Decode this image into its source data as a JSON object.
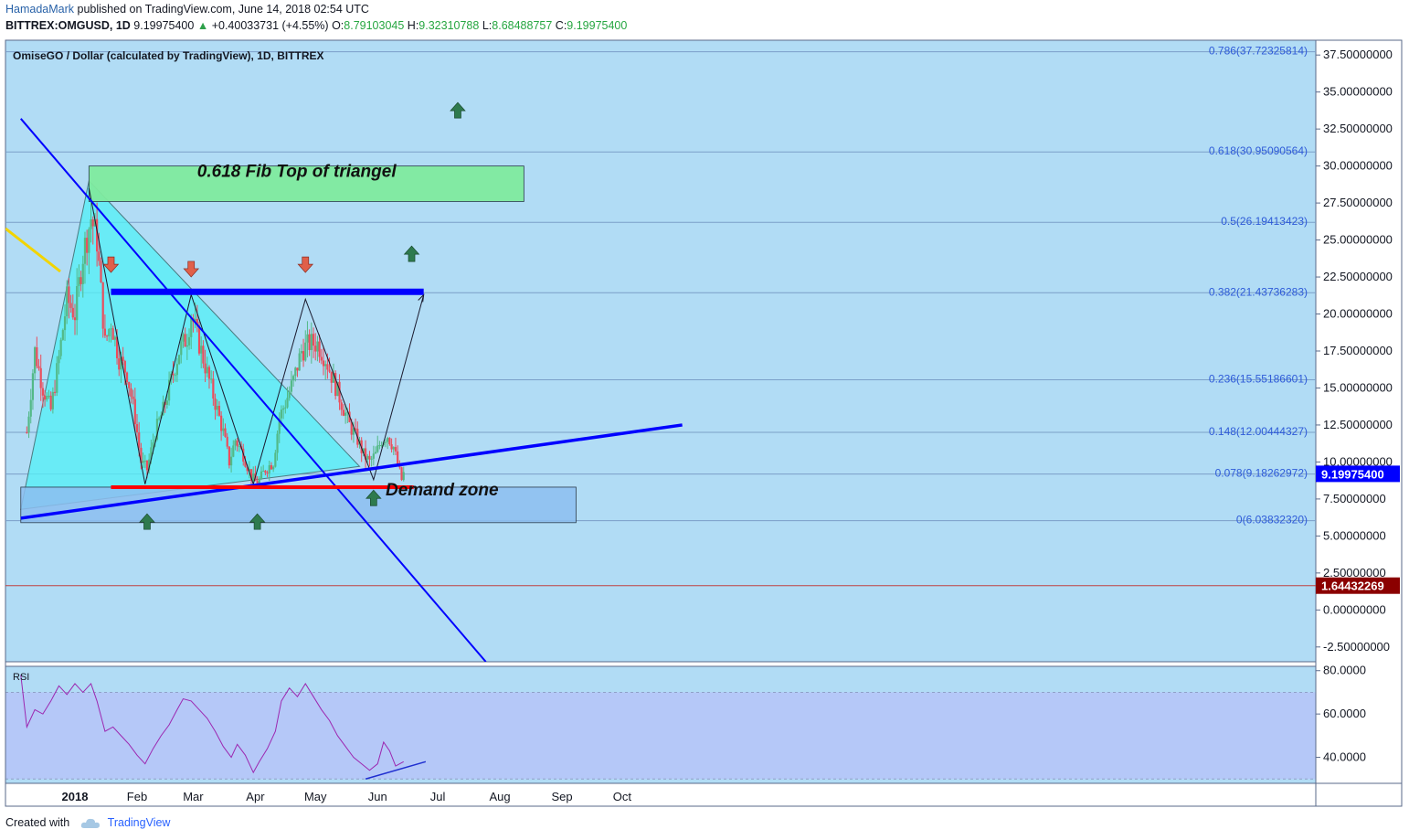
{
  "header": {
    "author": "HamadaMark",
    "published": "published on TradingView.com, June 14, 2018 02:54 UTC",
    "symbol": "BITTREX:OMGUSD, 1D",
    "last": "9.19975400",
    "change": "+0.40033731 (+4.55%)",
    "o_label": "O:",
    "o": "8.79103045",
    "h_label": "H:",
    "h": "9.32310788",
    "l_label": "L:",
    "l": "8.68488757",
    "c_label": "C:",
    "c": "9.19975400"
  },
  "chart_title": "OmiseGO / Dollar (calculated by TradingView), 1D, BITTREX",
  "footer": {
    "created": "Created with",
    "brand": "TradingView"
  },
  "colors": {
    "background": "#b1dcf5",
    "up_candle": "#53b987",
    "down_candle": "#eb4d5c",
    "trendline": "#0000ff",
    "resistance": "#0000ff",
    "support": "#ff0000",
    "triangle_fill": "#52f0f5",
    "fib_zone": "#80ea9e",
    "demand_zone": "#8dbef0",
    "rsi": "#9c27b0",
    "price_marker": "#0000ff",
    "low_marker": "#8b0000"
  },
  "chart_data": [
    {
      "type": "candlestick",
      "symbol": "OMGUSD",
      "timeframe": "1D",
      "x_labels": [
        "2018",
        "Feb",
        "Mar",
        "Apr",
        "May",
        "Jun",
        "Jul",
        "Aug",
        "Sep",
        "Oct"
      ],
      "y_ticks": [
        "37.50000000",
        "35.00000000",
        "32.50000000",
        "30.00000000",
        "27.50000000",
        "25.00000000",
        "22.50000000",
        "20.00000000",
        "17.50000000",
        "15.00000000",
        "12.50000000",
        "10.00000000",
        "7.50000000",
        "5.00000000",
        "2.50000000",
        "0.00000000",
        "-2.50000000"
      ],
      "ylim": [
        -3.5,
        38.5
      ],
      "x_anchors": [
        {
          "date": "2018-01-01",
          "label": "2018"
        },
        {
          "date": "2018-02-01",
          "label": "Feb"
        },
        {
          "date": "2018-03-01",
          "label": "Mar"
        },
        {
          "date": "2018-04-01",
          "label": "Apr"
        },
        {
          "date": "2018-05-01",
          "label": "May"
        },
        {
          "date": "2018-06-01",
          "label": "Jun"
        },
        {
          "date": "2018-07-01",
          "label": "Jul"
        },
        {
          "date": "2018-08-01",
          "label": "Aug"
        },
        {
          "date": "2018-09-01",
          "label": "Sep"
        },
        {
          "date": "2018-10-01",
          "label": "Oct"
        }
      ],
      "close_path": [
        {
          "date": "2017-12-08",
          "close": 12.0
        },
        {
          "date": "2017-12-12",
          "close": 17.5
        },
        {
          "date": "2017-12-16",
          "close": 15.0
        },
        {
          "date": "2017-12-20",
          "close": 13.5
        },
        {
          "date": "2017-12-24",
          "close": 17.0
        },
        {
          "date": "2017-12-28",
          "close": 21.0
        },
        {
          "date": "2018-01-01",
          "close": 20.0
        },
        {
          "date": "2018-01-05",
          "close": 24.0
        },
        {
          "date": "2018-01-09",
          "close": 26.5
        },
        {
          "date": "2018-01-12",
          "close": 25.0
        },
        {
          "date": "2018-01-16",
          "close": 18.0
        },
        {
          "date": "2018-01-19",
          "close": 19.5
        },
        {
          "date": "2018-01-23",
          "close": 17.0
        },
        {
          "date": "2018-01-27",
          "close": 16.0
        },
        {
          "date": "2018-01-31",
          "close": 13.0
        },
        {
          "date": "2018-02-03",
          "close": 10.0
        },
        {
          "date": "2018-02-06",
          "close": 9.5
        },
        {
          "date": "2018-02-10",
          "close": 12.0
        },
        {
          "date": "2018-02-14",
          "close": 13.5
        },
        {
          "date": "2018-02-18",
          "close": 15.5
        },
        {
          "date": "2018-02-22",
          "close": 17.5
        },
        {
          "date": "2018-02-26",
          "close": 18.5
        },
        {
          "date": "2018-02-28",
          "close": 20.0
        },
        {
          "date": "2018-03-04",
          "close": 18.0
        },
        {
          "date": "2018-03-08",
          "close": 16.0
        },
        {
          "date": "2018-03-12",
          "close": 14.0
        },
        {
          "date": "2018-03-16",
          "close": 12.0
        },
        {
          "date": "2018-03-19",
          "close": 10.0
        },
        {
          "date": "2018-03-22",
          "close": 11.5
        },
        {
          "date": "2018-03-26",
          "close": 10.5
        },
        {
          "date": "2018-03-30",
          "close": 9.0
        },
        {
          "date": "2018-04-02",
          "close": 8.5
        },
        {
          "date": "2018-04-06",
          "close": 9.5
        },
        {
          "date": "2018-04-10",
          "close": 10.0
        },
        {
          "date": "2018-04-13",
          "close": 13.0
        },
        {
          "date": "2018-04-16",
          "close": 14.0
        },
        {
          "date": "2018-04-20",
          "close": 15.5
        },
        {
          "date": "2018-04-24",
          "close": 17.5
        },
        {
          "date": "2018-04-28",
          "close": 18.0
        },
        {
          "date": "2018-05-02",
          "close": 18.0
        },
        {
          "date": "2018-05-06",
          "close": 17.0
        },
        {
          "date": "2018-05-10",
          "close": 15.5
        },
        {
          "date": "2018-05-14",
          "close": 14.0
        },
        {
          "date": "2018-05-18",
          "close": 12.5
        },
        {
          "date": "2018-05-22",
          "close": 11.5
        },
        {
          "date": "2018-05-25",
          "close": 10.5
        },
        {
          "date": "2018-05-28",
          "close": 10.0
        },
        {
          "date": "2018-05-31",
          "close": 10.5
        },
        {
          "date": "2018-06-03",
          "close": 11.5
        },
        {
          "date": "2018-06-06",
          "close": 11.8
        },
        {
          "date": "2018-06-09",
          "close": 11.0
        },
        {
          "date": "2018-06-11",
          "close": 9.8
        },
        {
          "date": "2018-06-13",
          "close": 8.8
        },
        {
          "date": "2018-06-14",
          "close": 9.2
        }
      ],
      "fib_levels": [
        {
          "label": "0.786(37.72325814)",
          "value": 37.72325814
        },
        {
          "label": "0.618(30.95090564)",
          "value": 30.95090564
        },
        {
          "label": "0.5(26.19413423)",
          "value": 26.19413423
        },
        {
          "label": "0.382(21.43736283)",
          "value": 21.43736283
        },
        {
          "label": "0.236(15.55186601)",
          "value": 15.55186601
        },
        {
          "label": "0.148(12.00444327)",
          "value": 12.00444327
        },
        {
          "label": "0.078(9.18262972)",
          "value": 9.18262972
        },
        {
          "label": "0(6.03832320)",
          "value": 6.0383232
        }
      ],
      "zones": [
        {
          "label": "0.618 Fib Top of triangel",
          "from": "2018-01-08",
          "to": "2018-08-13",
          "top": 30.0,
          "bottom": 27.6
        },
        {
          "label": "Demand zone",
          "from": "2017-12-05",
          "to": "2018-09-08",
          "top": 8.3,
          "bottom": 5.9
        }
      ],
      "resistance": {
        "value": 21.5,
        "from": "2018-01-19",
        "to": "2018-06-24"
      },
      "support": {
        "value": 8.3,
        "from": "2018-01-19",
        "to": "2018-06-19"
      },
      "descending_trendline": {
        "from": {
          "date": "2017-12-05",
          "value": 33.2
        },
        "to": {
          "date": "2018-07-25",
          "value": -3.5
        }
      },
      "ascending_trendline": {
        "from": {
          "date": "2017-12-05",
          "value": 6.2
        },
        "to": {
          "date": "2018-10-31",
          "value": 12.5
        }
      },
      "triangle": [
        {
          "date": "2017-12-05",
          "value": 6.8
        },
        {
          "date": "2018-01-08",
          "value": 29.0
        },
        {
          "date": "2018-05-23",
          "value": 9.7
        }
      ],
      "zigzag": [
        {
          "date": "2018-01-08",
          "value": 28.5
        },
        {
          "date": "2018-02-05",
          "value": 8.5
        },
        {
          "date": "2018-02-28",
          "value": 21.3
        },
        {
          "date": "2018-03-31",
          "value": 8.5
        },
        {
          "date": "2018-04-26",
          "value": 21.0
        },
        {
          "date": "2018-05-30",
          "value": 8.8
        },
        {
          "date": "2018-06-24",
          "value": 21.3
        }
      ],
      "down_arrows": [
        {
          "date": "2018-01-19",
          "value": 23.3
        },
        {
          "date": "2018-02-28",
          "value": 23.0
        },
        {
          "date": "2018-04-26",
          "value": 23.3
        }
      ],
      "up_arrows": [
        {
          "date": "2018-02-06",
          "value": 6.0
        },
        {
          "date": "2018-04-02",
          "value": 6.0
        },
        {
          "date": "2018-05-30",
          "value": 7.6
        },
        {
          "date": "2018-06-18",
          "value": 24.1
        },
        {
          "date": "2018-07-11",
          "value": 33.8
        }
      ],
      "last_price_label": "9.19975400",
      "last_price": 9.199754,
      "low_label": "1.64432269",
      "low_value": 1.64432269
    },
    {
      "type": "line",
      "name": "RSI",
      "y_ticks": [
        "80.0000",
        "60.0000",
        "40.0000"
      ],
      "ylim": [
        28,
        82
      ],
      "band": [
        30,
        70
      ],
      "points": [
        {
          "date": "2017-12-05",
          "value": 78
        },
        {
          "date": "2017-12-08",
          "value": 54
        },
        {
          "date": "2017-12-12",
          "value": 62
        },
        {
          "date": "2017-12-16",
          "value": 60
        },
        {
          "date": "2017-12-20",
          "value": 66
        },
        {
          "date": "2017-12-24",
          "value": 73
        },
        {
          "date": "2017-12-28",
          "value": 69
        },
        {
          "date": "2018-01-01",
          "value": 74
        },
        {
          "date": "2018-01-05",
          "value": 70
        },
        {
          "date": "2018-01-09",
          "value": 74
        },
        {
          "date": "2018-01-12",
          "value": 66
        },
        {
          "date": "2018-01-16",
          "value": 52
        },
        {
          "date": "2018-01-20",
          "value": 54
        },
        {
          "date": "2018-01-24",
          "value": 50
        },
        {
          "date": "2018-01-28",
          "value": 46
        },
        {
          "date": "2018-02-01",
          "value": 41
        },
        {
          "date": "2018-02-05",
          "value": 37
        },
        {
          "date": "2018-02-09",
          "value": 44
        },
        {
          "date": "2018-02-13",
          "value": 50
        },
        {
          "date": "2018-02-17",
          "value": 55
        },
        {
          "date": "2018-02-21",
          "value": 62
        },
        {
          "date": "2018-02-24",
          "value": 67
        },
        {
          "date": "2018-02-28",
          "value": 66
        },
        {
          "date": "2018-03-04",
          "value": 62
        },
        {
          "date": "2018-03-08",
          "value": 58
        },
        {
          "date": "2018-03-12",
          "value": 52
        },
        {
          "date": "2018-03-16",
          "value": 45
        },
        {
          "date": "2018-03-20",
          "value": 40
        },
        {
          "date": "2018-03-23",
          "value": 46
        },
        {
          "date": "2018-03-27",
          "value": 41
        },
        {
          "date": "2018-03-31",
          "value": 33
        },
        {
          "date": "2018-04-03",
          "value": 38
        },
        {
          "date": "2018-04-07",
          "value": 44
        },
        {
          "date": "2018-04-11",
          "value": 52
        },
        {
          "date": "2018-04-14",
          "value": 66
        },
        {
          "date": "2018-04-18",
          "value": 72
        },
        {
          "date": "2018-04-22",
          "value": 68
        },
        {
          "date": "2018-04-26",
          "value": 74
        },
        {
          "date": "2018-04-30",
          "value": 68
        },
        {
          "date": "2018-05-04",
          "value": 62
        },
        {
          "date": "2018-05-08",
          "value": 57
        },
        {
          "date": "2018-05-12",
          "value": 50
        },
        {
          "date": "2018-05-16",
          "value": 45
        },
        {
          "date": "2018-05-20",
          "value": 40
        },
        {
          "date": "2018-05-24",
          "value": 37
        },
        {
          "date": "2018-05-28",
          "value": 34
        },
        {
          "date": "2018-06-01",
          "value": 37
        },
        {
          "date": "2018-06-04",
          "value": 47
        },
        {
          "date": "2018-06-07",
          "value": 43
        },
        {
          "date": "2018-06-10",
          "value": 36
        },
        {
          "date": "2018-06-14",
          "value": 38
        }
      ],
      "divergence_line": {
        "from": {
          "date": "2018-05-26",
          "value": 30
        },
        "to": {
          "date": "2018-06-25",
          "value": 38
        }
      }
    }
  ]
}
